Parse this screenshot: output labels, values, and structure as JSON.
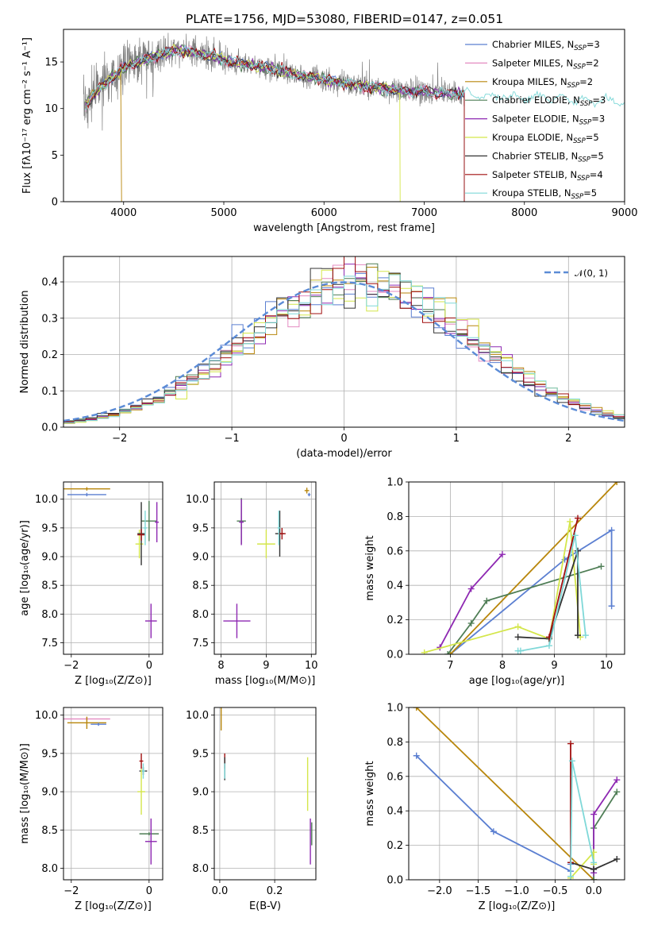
{
  "figure": {
    "title": "PLATE=1756, MJD=53080, FIBERID=0147, z=0.051"
  },
  "series": [
    {
      "label": "Chabrier MILES, N",
      "sub": "SSP",
      "suffix": "=3",
      "color": "#5b7fd1"
    },
    {
      "label": "Salpeter MILES, N",
      "sub": "SSP",
      "suffix": "=2",
      "color": "#e48bc1"
    },
    {
      "label": "Kroupa MILES, N",
      "sub": "SSP",
      "suffix": "=2",
      "color": "#b8860b"
    },
    {
      "label": "Chabrier ELODIE, N",
      "sub": "SSP",
      "suffix": "=3",
      "color": "#4e7d55"
    },
    {
      "label": "Salpeter ELODIE, N",
      "sub": "SSP",
      "suffix": "=3",
      "color": "#8e28b2"
    },
    {
      "label": "Kroupa ELODIE, N",
      "sub": "SSP",
      "suffix": "=5",
      "color": "#d4e64a"
    },
    {
      "label": "Chabrier STELIB, N",
      "sub": "SSP",
      "suffix": "=5",
      "color": "#333333"
    },
    {
      "label": "Salpeter STELIB, N",
      "sub": "SSP",
      "suffix": "=4",
      "color": "#a10f0f"
    },
    {
      "label": "Kroupa STELIB, N",
      "sub": "SSP",
      "suffix": "=5",
      "color": "#7fd8d8"
    }
  ],
  "chart_data": [
    {
      "id": "spectrum",
      "type": "line",
      "title": "PLATE=1756, MJD=53080, FIBERID=0147, z=0.051",
      "xlabel": "wavelength [Angstrom, rest frame]",
      "ylabel": "Flux [fλ10⁻¹⁷ erg cm⁻² s⁻¹ A⁻¹]",
      "xlim": [
        3400,
        9000
      ],
      "ylim": [
        0,
        18.5
      ],
      "xticks": [
        4000,
        5000,
        6000,
        7000,
        8000,
        9000
      ],
      "yticks": [
        0,
        5,
        10,
        15
      ],
      "grid": false,
      "legend": "upper right",
      "data_x": [
        3600,
        3700,
        3800,
        3900,
        4000,
        4100,
        4200,
        4300,
        4400,
        4500,
        4600,
        4700,
        4800,
        4900,
        5000,
        5200,
        5400,
        5600,
        5800,
        6000,
        6200,
        6400,
        6600,
        6800,
        7000,
        7200,
        7400,
        7600,
        7800,
        8000,
        8200,
        8400,
        8600,
        8800,
        9000
      ],
      "data_y": [
        10.0,
        11.5,
        12.5,
        13.5,
        14.3,
        14.8,
        15.2,
        15.6,
        15.9,
        16.2,
        16.2,
        16.0,
        15.8,
        15.6,
        15.2,
        14.8,
        14.4,
        14.0,
        13.5,
        13.1,
        12.7,
        12.4,
        12.1,
        11.9,
        11.8,
        11.6,
        11.6,
        11.4,
        11.3,
        11.2,
        11.1,
        11.0,
        10.9,
        10.8,
        10.7
      ]
    },
    {
      "id": "residuals",
      "type": "step",
      "xlabel": "(data-model)/error",
      "ylabel": "Normed distribution",
      "xlim": [
        -2.5,
        2.5
      ],
      "ylim": [
        0,
        0.47
      ],
      "xticks": [
        -2,
        -1,
        0,
        1,
        2
      ],
      "yticks": [
        0.0,
        0.1,
        0.2,
        0.3,
        0.4
      ],
      "grid": true,
      "legend": "upper right",
      "legend_label": "𝒩(0, 1)"
    },
    {
      "id": "age_vs_Z",
      "type": "errorbar",
      "xlabel": "Z [log₁₀(Z/Z⊙)]",
      "ylabel": "age  [log₁₀(age/yr)]",
      "xlim": [
        -2.2,
        0.35
      ],
      "ylim": [
        7.3,
        10.3
      ],
      "xticks": [
        -2,
        0
      ],
      "yticks": [
        7.5,
        8.0,
        8.5,
        9.0,
        9.5,
        10.0
      ],
      "grid": true,
      "points": [
        {
          "s": 0,
          "x": -1.6,
          "y": 10.08,
          "xe": 0.5,
          "ye": 0.03
        },
        {
          "s": 2,
          "x": -1.6,
          "y": 10.18,
          "xe": 0.6,
          "ye": 0.03
        },
        {
          "s": 3,
          "x": 0.0,
          "y": 9.62,
          "xe": 0.2,
          "ye": 0.35
        },
        {
          "s": 5,
          "x": -0.25,
          "y": 9.22,
          "xe": 0.1,
          "ye": 0.25
        },
        {
          "s": 6,
          "x": -0.2,
          "y": 9.4,
          "xe": 0.1,
          "ye": 0.55
        },
        {
          "s": 7,
          "x": -0.2,
          "y": 9.38,
          "xe": 0.1,
          "ye": 0.1
        },
        {
          "s": 4,
          "x": 0.05,
          "y": 7.88,
          "xe": 0.15,
          "ye": 0.3
        },
        {
          "s": 4,
          "x": 0.2,
          "y": 9.6,
          "xe": 0.05,
          "ye": 0.35
        },
        {
          "s": 8,
          "x": -0.1,
          "y": 9.5,
          "xe": 0.05,
          "ye": 0.3
        }
      ]
    },
    {
      "id": "age_vs_mass",
      "type": "errorbar",
      "xlabel": "mass [log₁₀(M/M⊙)]",
      "ylabel": "",
      "xlim": [
        7.85,
        10.1
      ],
      "ylim": [
        7.3,
        10.3
      ],
      "xticks": [
        8,
        9,
        10
      ],
      "yticks": [
        7.5,
        8.0,
        8.5,
        9.0,
        9.5,
        10.0
      ],
      "grid": true,
      "points": [
        {
          "s": 2,
          "x": 9.9,
          "y": 10.15,
          "xe": 0.05,
          "ye": 0.05
        },
        {
          "s": 0,
          "x": 9.95,
          "y": 10.08,
          "xe": 0.03,
          "ye": 0.03
        },
        {
          "s": 3,
          "x": 8.45,
          "y": 9.62,
          "xe": 0.1,
          "ye": 0.4
        },
        {
          "s": 5,
          "x": 9.0,
          "y": 9.22,
          "xe": 0.2,
          "ye": 0.25
        },
        {
          "s": 6,
          "x": 9.3,
          "y": 9.4,
          "xe": 0.1,
          "ye": 0.4
        },
        {
          "s": 7,
          "x": 9.35,
          "y": 9.4,
          "xe": 0.08,
          "ye": 0.1
        },
        {
          "s": 4,
          "x": 8.35,
          "y": 7.88,
          "xe": 0.3,
          "ye": 0.3
        },
        {
          "s": 4,
          "x": 8.45,
          "y": 9.6,
          "xe": 0.05,
          "ye": 0.4
        },
        {
          "s": 8,
          "x": 9.28,
          "y": 9.5,
          "xe": 0.03,
          "ye": 0.3
        }
      ]
    },
    {
      "id": "weight_vs_age",
      "type": "line",
      "xlabel": "age  [log₁₀(age/yr)]",
      "ylabel": "mass weight",
      "xlim": [
        6.2,
        10.35
      ],
      "ylim": [
        0,
        1.0
      ],
      "xticks": [
        7,
        8,
        9,
        10
      ],
      "yticks": [
        0.0,
        0.2,
        0.4,
        0.6,
        0.8,
        1.0
      ],
      "grid": true,
      "lines": [
        {
          "s": 0,
          "x": [
            7.0,
            9.2,
            10.1,
            10.1
          ],
          "y": [
            0.0,
            0.55,
            0.72,
            0.28
          ]
        },
        {
          "s": 2,
          "x": [
            7.0,
            10.2
          ],
          "y": [
            0.0,
            1.0
          ]
        },
        {
          "s": 3,
          "x": [
            6.95,
            7.4,
            7.7,
            9.9
          ],
          "y": [
            0.0,
            0.18,
            0.31,
            0.51
          ]
        },
        {
          "s": 4,
          "x": [
            6.8,
            7.4,
            8.0
          ],
          "y": [
            0.04,
            0.38,
            0.58
          ]
        },
        {
          "s": 5,
          "x": [
            6.5,
            8.3,
            8.9,
            9.3,
            9.5
          ],
          "y": [
            0.01,
            0.16,
            0.09,
            0.77,
            0.1
          ]
        },
        {
          "s": 6,
          "x": [
            8.3,
            8.9,
            9.45,
            9.45
          ],
          "y": [
            0.1,
            0.09,
            0.6,
            0.11
          ]
        },
        {
          "s": 7,
          "x": [
            8.9,
            9.45
          ],
          "y": [
            0.1,
            0.79
          ]
        },
        {
          "s": 8,
          "x": [
            8.3,
            8.35,
            8.9,
            9.4,
            9.6
          ],
          "y": [
            0.02,
            0.02,
            0.05,
            0.69,
            0.11
          ]
        }
      ]
    },
    {
      "id": "mass_vs_Z",
      "type": "errorbar",
      "xlabel": "Z [log₁₀(Z/Z⊙)]",
      "ylabel": "mass [log₁₀(M/M⊙)]",
      "xlim": [
        -2.2,
        0.35
      ],
      "ylim": [
        7.85,
        10.1
      ],
      "xticks": [
        -2,
        0
      ],
      "yticks": [
        8.0,
        8.5,
        9.0,
        9.5,
        10.0
      ],
      "grid": true,
      "points": [
        {
          "s": 1,
          "x": -1.6,
          "y": 9.95,
          "xe": 0.6,
          "ye": 0.02
        },
        {
          "s": 2,
          "x": -1.6,
          "y": 9.9,
          "xe": 0.5,
          "ye": 0.08
        },
        {
          "s": 0,
          "x": -1.3,
          "y": 9.88,
          "xe": 0.2,
          "ye": 0.02
        },
        {
          "s": 7,
          "x": -0.2,
          "y": 9.4,
          "xe": 0.05,
          "ye": 0.1
        },
        {
          "s": 6,
          "x": -0.15,
          "y": 9.27,
          "xe": 0.1,
          "ye": 0.05
        },
        {
          "s": 8,
          "x": -0.15,
          "y": 9.27,
          "xe": 0.05,
          "ye": 0.1
        },
        {
          "s": 5,
          "x": -0.2,
          "y": 9.0,
          "xe": 0.1,
          "ye": 0.3
        },
        {
          "s": 3,
          "x": 0.0,
          "y": 8.45,
          "xe": 0.25,
          "ye": 0.02
        },
        {
          "s": 4,
          "x": 0.05,
          "y": 8.35,
          "xe": 0.15,
          "ye": 0.3
        }
      ]
    },
    {
      "id": "mass_vs_EBV",
      "type": "errorbar",
      "xlabel": "E(B-V)",
      "ylabel": "",
      "xlim": [
        -0.02,
        0.35
      ],
      "ylim": [
        7.85,
        10.1
      ],
      "xticks": [
        0.0,
        0.2
      ],
      "yticks": [
        8.0,
        8.5,
        9.0,
        9.5,
        10.0
      ],
      "grid": true,
      "points": [
        {
          "s": 2,
          "x": 0.005,
          "y": 9.95,
          "xe": 0.001,
          "ye": 0.15
        },
        {
          "s": 7,
          "x": 0.018,
          "y": 9.4,
          "xe": 0.001,
          "ye": 0.1
        },
        {
          "s": 6,
          "x": 0.018,
          "y": 9.3,
          "xe": 0.001,
          "ye": 0.15
        },
        {
          "s": 8,
          "x": 0.018,
          "y": 9.27,
          "xe": 0.001,
          "ye": 0.1
        },
        {
          "s": 5,
          "x": 0.32,
          "y": 9.1,
          "xe": 0.001,
          "ye": 0.35
        },
        {
          "s": 4,
          "x": 0.33,
          "y": 8.35,
          "xe": 0.001,
          "ye": 0.3
        },
        {
          "s": 3,
          "x": 0.335,
          "y": 8.45,
          "xe": 0.001,
          "ye": 0.15
        }
      ]
    },
    {
      "id": "weight_vs_Z",
      "type": "line",
      "xlabel": "Z [log₁₀(Z/Z⊙)]",
      "ylabel": "mass weight",
      "xlim": [
        -2.4,
        0.4
      ],
      "ylim": [
        0,
        1.0
      ],
      "xticks": [
        -2.0,
        -1.5,
        -1.0,
        -0.5,
        0.0
      ],
      "yticks": [
        0.0,
        0.2,
        0.4,
        0.6,
        0.8,
        1.0
      ],
      "grid": true,
      "lines": [
        {
          "s": 0,
          "x": [
            -2.3,
            -1.3,
            -0.3,
            -0.3
          ],
          "y": [
            0.72,
            0.28,
            0.05,
            0.09
          ]
        },
        {
          "s": 2,
          "x": [
            -2.3,
            0.0
          ],
          "y": [
            1.0,
            0.0
          ]
        },
        {
          "s": 3,
          "x": [
            0.0,
            0.0,
            0.3
          ],
          "y": [
            0.0,
            0.3,
            0.51
          ]
        },
        {
          "s": 4,
          "x": [
            0.0,
            0.0,
            0.3
          ],
          "y": [
            0.04,
            0.38,
            0.58
          ]
        },
        {
          "s": 5,
          "x": [
            -0.3,
            0.0,
            0.0
          ],
          "y": [
            0.01,
            0.16,
            0.09
          ]
        },
        {
          "s": 6,
          "x": [
            -0.3,
            0.0,
            0.3
          ],
          "y": [
            0.1,
            0.06,
            0.12
          ]
        },
        {
          "s": 7,
          "x": [
            -0.3,
            -0.3
          ],
          "y": [
            0.1,
            0.79
          ]
        },
        {
          "s": 8,
          "x": [
            -0.3,
            -0.28,
            0.0
          ],
          "y": [
            0.02,
            0.69,
            0.1
          ]
        }
      ]
    }
  ]
}
